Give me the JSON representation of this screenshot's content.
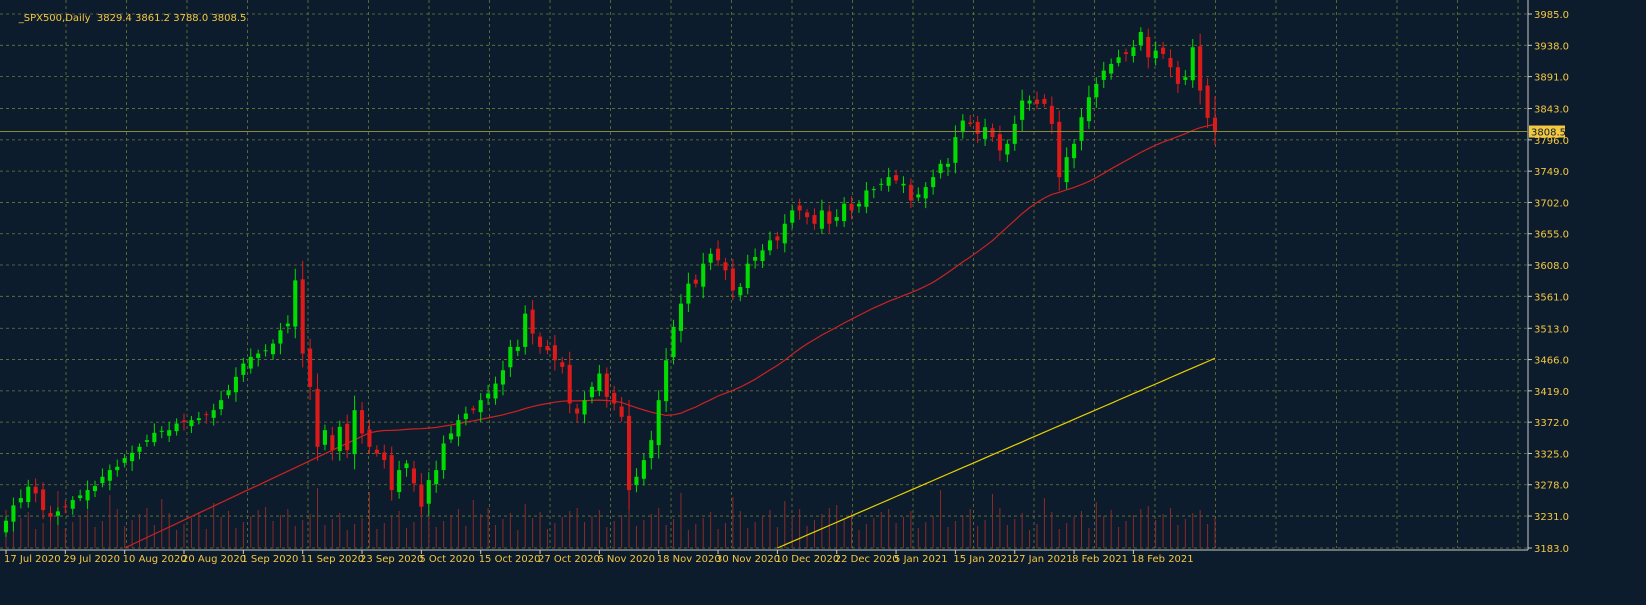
{
  "header": {
    "symbol": "_SPX500,Daily",
    "ohlc": "3829.4 3861.2 3788.0 3808.5"
  },
  "colors": {
    "background": "#0c1c2c",
    "grid": "#6b7a3a",
    "axis_text": "#f5c842",
    "bull_candle": "#00dd00",
    "bear_candle": "#dd1a1a",
    "ma_short": "#cc2222",
    "ma_long": "#e8d000",
    "volume": "#8a2a2a",
    "current_price_line": "#8a8a3a",
    "current_price_tag": "#f5c842"
  },
  "chart_data": {
    "type": "candlestick",
    "title": "_SPX500,Daily",
    "ylim": [
      3183.0,
      3985.0
    ],
    "y_ticks": [
      "3985.0",
      "3938.0",
      "3891.0",
      "3843.0",
      "3796.0",
      "3749.0",
      "3702.0",
      "3655.0",
      "3608.0",
      "3561.0",
      "3513.0",
      "3466.0",
      "3419.0",
      "3372.0",
      "3325.0",
      "3278.0",
      "3231.0",
      "3183.0"
    ],
    "x_ticks": [
      {
        "label": "17 Jul 2020",
        "index": 0
      },
      {
        "label": "29 Jul 2020",
        "index": 8
      },
      {
        "label": "10 Aug 2020",
        "index": 16
      },
      {
        "label": "20 Aug 2020",
        "index": 24
      },
      {
        "label": "1 Sep 2020",
        "index": 32
      },
      {
        "label": "11 Sep 2020",
        "index": 40
      },
      {
        "label": "23 Sep 2020",
        "index": 48
      },
      {
        "label": "5 Oct 2020",
        "index": 56
      },
      {
        "label": "15 Oct 2020",
        "index": 64
      },
      {
        "label": "27 Oct 2020",
        "index": 72
      },
      {
        "label": "6 Nov 2020",
        "index": 80
      },
      {
        "label": "18 Nov 2020",
        "index": 88
      },
      {
        "label": "30 Nov 2020",
        "index": 96
      },
      {
        "label": "10 Dec 2020",
        "index": 104
      },
      {
        "label": "22 Dec 2020",
        "index": 112
      },
      {
        "label": "5 Jan 2021",
        "index": 120
      },
      {
        "label": "15 Jan 2021",
        "index": 128
      },
      {
        "label": "27 Jan 2021",
        "index": 136
      },
      {
        "label": "8 Feb 2021",
        "index": 144
      },
      {
        "label": "18 Feb 2021",
        "index": 152
      }
    ],
    "current_price": 3808.5,
    "current_price_label": "3808.5",
    "closes": [
      3224,
      3247,
      3258,
      3275,
      3265,
      3240,
      3230,
      3238,
      3245,
      3255,
      3262,
      3270,
      3276,
      3290,
      3300,
      3305,
      3318,
      3326,
      3335,
      3345,
      3356,
      3359,
      3360,
      3370,
      3372,
      3375,
      3378,
      3383,
      3390,
      3405,
      3420,
      3440,
      3460,
      3470,
      3475,
      3480,
      3490,
      3510,
      3520,
      3585,
      3475,
      3425,
      3335,
      3360,
      3330,
      3365,
      3330,
      3390,
      3355,
      3335,
      3325,
      3315,
      3270,
      3300,
      3310,
      3280,
      3245,
      3285,
      3300,
      3340,
      3355,
      3375,
      3385,
      3390,
      3405,
      3415,
      3430,
      3450,
      3485,
      3485,
      3535,
      3505,
      3485,
      3480,
      3465,
      3455,
      3400,
      3385,
      3405,
      3425,
      3445,
      3410,
      3400,
      3380,
      3270,
      3290,
      3315,
      3345,
      3405,
      3465,
      3515,
      3550,
      3580,
      3580,
      3610,
      3625,
      3615,
      3600,
      3570,
      3575,
      3610,
      3620,
      3630,
      3645,
      3645,
      3670,
      3690,
      3690,
      3680,
      3670,
      3690,
      3670,
      3680,
      3700,
      3690,
      3700,
      3720,
      3722,
      3730,
      3740,
      3735,
      3730,
      3705,
      3714,
      3725,
      3740,
      3760,
      3760,
      3800,
      3825,
      3820,
      3805,
      3815,
      3800,
      3780,
      3790,
      3820,
      3855,
      3855,
      3850,
      3850,
      3820,
      3740,
      3770,
      3790,
      3830,
      3860,
      3880,
      3900,
      3910,
      3920,
      3925,
      3935,
      3958,
      3920,
      3930,
      3925,
      3905,
      3880,
      3890,
      3935,
      3870,
      3829,
      3808.5
    ],
    "ohlc_last": {
      "open": 3829.4,
      "high": 3861.2,
      "low": 3788.0,
      "close": 3808.5
    },
    "series": [
      {
        "role": "ma_short"
      },
      {
        "role": "ma_long"
      }
    ]
  }
}
